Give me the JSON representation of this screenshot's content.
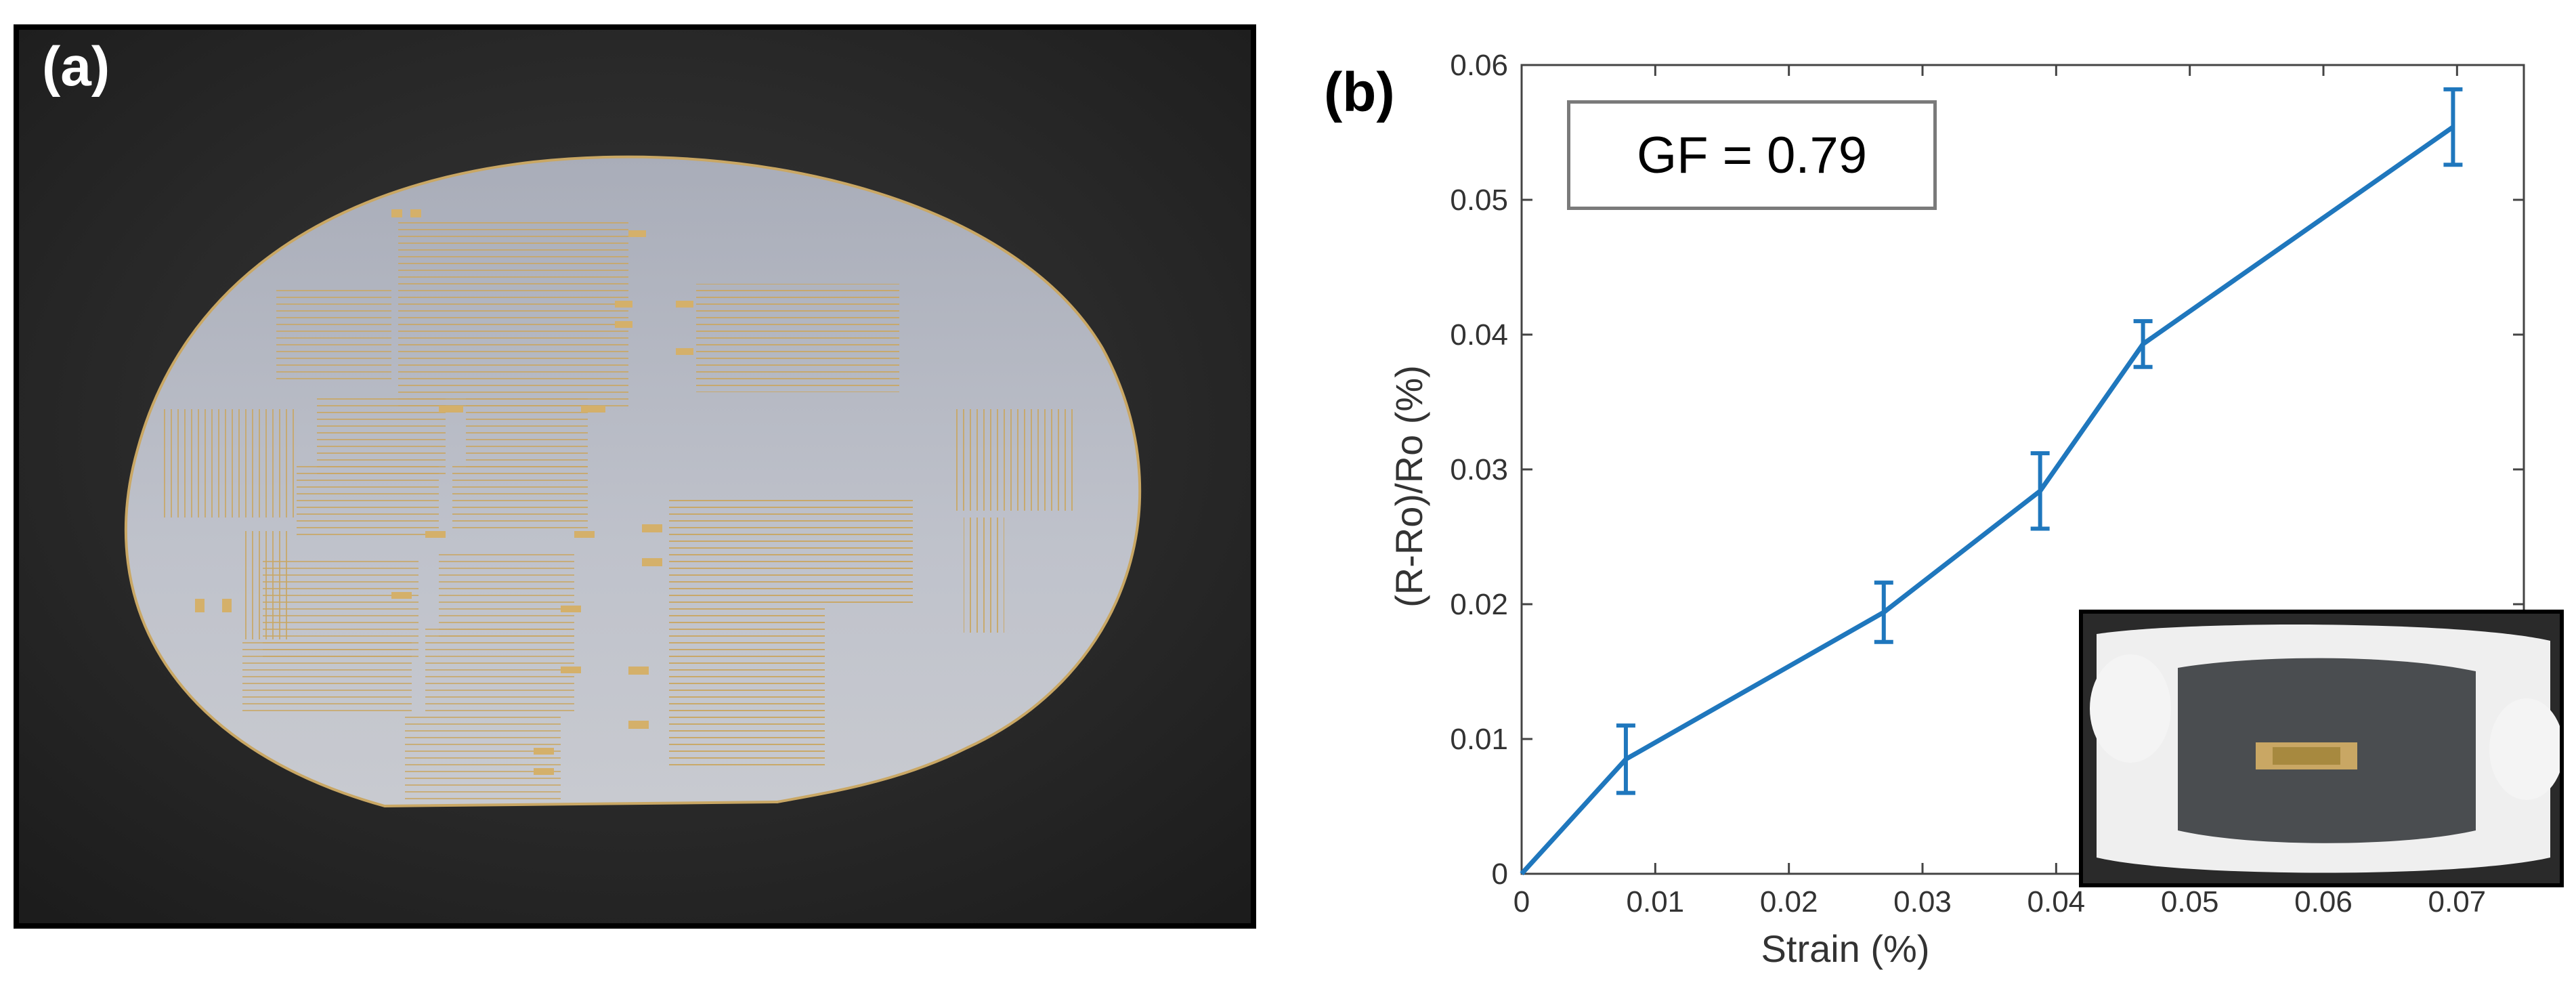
{
  "panels": {
    "a_label": "(a)",
    "b_label": "(b)"
  },
  "photo": {
    "description_icon": "wafer-photo",
    "colors": {
      "background": "#2b2b2b",
      "wafer": "#b9bcc6",
      "gold": "#c9a764"
    }
  },
  "inset_photo": {
    "icon": "sensor-inset-photo"
  },
  "annotation": {
    "gf_text": "GF = 0.79"
  },
  "chart_data": {
    "type": "line",
    "xlabel": "Strain (%)",
    "ylabel": "(R-Ro)/Ro (%)",
    "xlim": [
      0,
      0.075
    ],
    "ylim": [
      0,
      0.06
    ],
    "x_ticks": [
      "0",
      "0.01",
      "0.02",
      "0.03",
      "0.04",
      "0.05",
      "0.06",
      "0.07"
    ],
    "y_ticks": [
      "0",
      "0.01",
      "0.02",
      "0.03",
      "0.04",
      "0.05",
      "0.06"
    ],
    "grid": false,
    "series": [
      {
        "x": [
          0,
          0.0078,
          0.0271,
          0.0388,
          0.0465,
          0.0697
        ],
        "y": [
          0,
          0.0085,
          0.0194,
          0.0284,
          0.0393,
          0.0554
        ],
        "error": [
          0,
          0.0025,
          0.0022,
          0.0028,
          0.0017,
          0.0028
        ],
        "color": "#1f77bd"
      }
    ]
  }
}
